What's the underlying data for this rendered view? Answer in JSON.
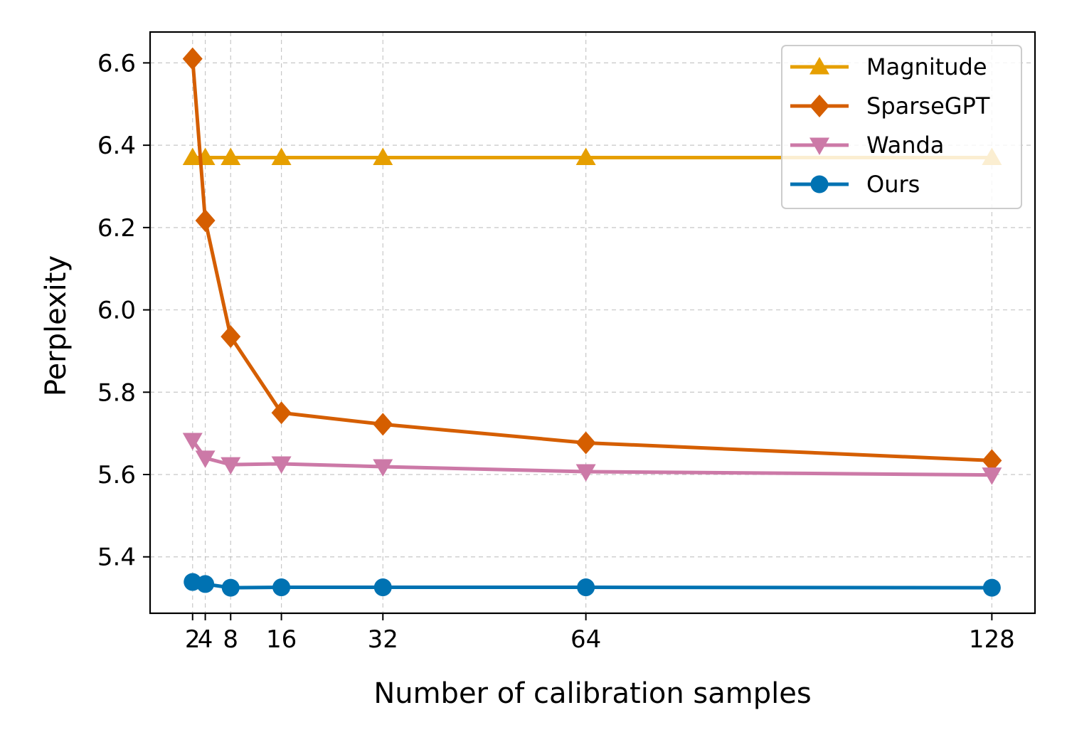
{
  "chart_data": {
    "type": "line",
    "title": "",
    "xlabel": "Number of calibration samples",
    "ylabel": "Perplexity",
    "x": [
      2,
      4,
      8,
      16,
      32,
      64,
      128
    ],
    "x_tick_labels": [
      "2",
      "4",
      "8",
      "16",
      "32",
      "64",
      "128"
    ],
    "xlim": [
      -4.7,
      134.8
    ],
    "ylim": [
      5.263,
      6.675
    ],
    "y_ticks": [
      5.4,
      5.6,
      5.8,
      6.0,
      6.2,
      6.4,
      6.6
    ],
    "y_tick_labels": [
      "5.4",
      "5.6",
      "5.8",
      "6.0",
      "6.2",
      "6.4",
      "6.6"
    ],
    "grid": true,
    "legend_position": "top-right",
    "series": [
      {
        "name": "Magnitude",
        "color": "#E69F00",
        "marker": "triangle-up",
        "values": [
          6.37,
          6.37,
          6.37,
          6.37,
          6.37,
          6.37,
          6.37
        ]
      },
      {
        "name": "SparseGPT",
        "color": "#D55E00",
        "marker": "diamond",
        "values": [
          6.61,
          6.217,
          5.935,
          5.75,
          5.722,
          5.677,
          5.634
        ]
      },
      {
        "name": "Wanda",
        "color": "#CC79A7",
        "marker": "triangle-down",
        "values": [
          5.683,
          5.64,
          5.624,
          5.626,
          5.619,
          5.607,
          5.599
        ]
      },
      {
        "name": "Ours",
        "color": "#0072B2",
        "marker": "circle",
        "values": [
          5.339,
          5.334,
          5.325,
          5.326,
          5.326,
          5.326,
          5.325
        ]
      }
    ]
  }
}
